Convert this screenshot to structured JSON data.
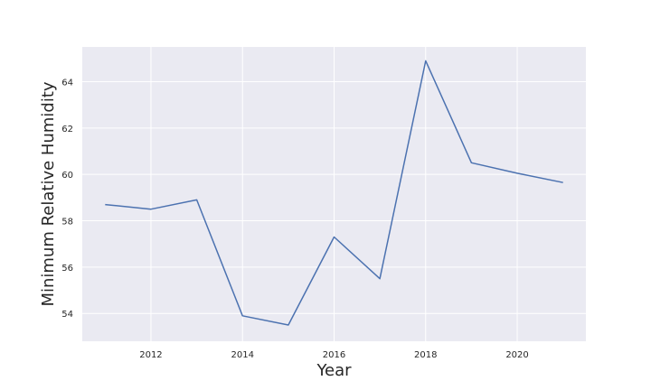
{
  "chart_data": {
    "type": "line",
    "xlabel": "Year",
    "ylabel": "Minimum Relative Humidity",
    "x": [
      2011,
      2012,
      2013,
      2014,
      2015,
      2016,
      2017,
      2018,
      2019,
      2020,
      2021
    ],
    "series": [
      {
        "values": [
          58.7,
          58.5,
          58.9,
          53.9,
          53.5,
          57.3,
          55.5,
          64.9,
          60.5,
          60.05,
          59.65
        ]
      }
    ],
    "xticks": [
      2012,
      2014,
      2016,
      2018,
      2020
    ],
    "xtick_labels": [
      "2012",
      "2014",
      "2016",
      "2018",
      "2020"
    ],
    "yticks": [
      54,
      56,
      58,
      60,
      62,
      64
    ],
    "ytick_labels": [
      "54",
      "56",
      "58",
      "60",
      "62",
      "64"
    ],
    "xlim": [
      2010.5,
      2021.5
    ],
    "ylim": [
      52.8,
      65.5
    ],
    "grid": true,
    "background_color": "#eaeaf2",
    "line_color": "#4c72b0"
  }
}
